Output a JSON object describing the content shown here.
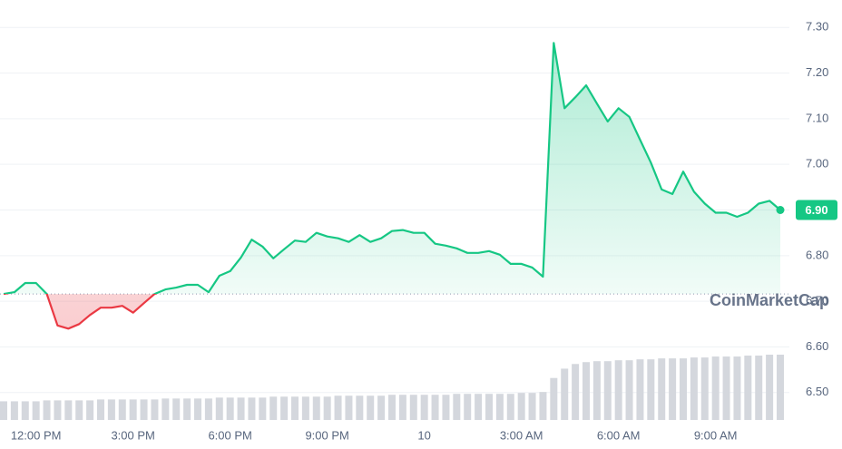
{
  "chart_data": {
    "type": "line",
    "categories": [
      null,
      null,
      null,
      "12:00 PM",
      null,
      null,
      null,
      null,
      null,
      null,
      null,
      null,
      "3:00 PM",
      null,
      null,
      null,
      null,
      null,
      null,
      null,
      null,
      "6:00 PM",
      null,
      null,
      null,
      null,
      null,
      null,
      null,
      null,
      "9:00 PM",
      null,
      null,
      null,
      null,
      null,
      null,
      null,
      null,
      "10",
      null,
      null,
      null,
      null,
      null,
      null,
      null,
      null,
      "3:00 AM",
      null,
      null,
      null,
      null,
      null,
      null,
      null,
      null,
      "6:00 AM",
      null,
      null,
      null,
      null,
      null,
      null,
      null,
      null,
      "9:00 AM",
      null,
      null,
      null,
      null,
      null,
      null
    ],
    "series": [
      {
        "name": "Price",
        "color": "#16c784",
        "below_color": "#ea3943",
        "values": [
          6.716,
          6.72,
          6.74,
          6.74,
          6.716,
          6.647,
          6.64,
          6.65,
          6.67,
          6.686,
          6.686,
          6.69,
          6.675,
          6.696,
          6.716,
          6.726,
          6.73,
          6.736,
          6.736,
          6.72,
          6.756,
          6.766,
          6.796,
          6.835,
          6.82,
          6.794,
          6.814,
          6.833,
          6.83,
          6.85,
          6.842,
          6.838,
          6.83,
          6.845,
          6.83,
          6.838,
          6.854,
          6.856,
          6.85,
          6.85,
          6.826,
          6.822,
          6.816,
          6.806,
          6.806,
          6.81,
          6.802,
          6.782,
          6.782,
          6.774,
          6.754,
          7.266,
          7.123,
          7.147,
          7.173,
          7.133,
          7.094,
          7.123,
          7.104,
          7.054,
          7.004,
          6.945,
          6.935,
          6.984,
          6.94,
          6.914,
          6.894,
          6.894,
          6.885,
          6.894,
          6.914,
          6.92,
          6.9
        ]
      }
    ],
    "volume": {
      "color": "#d4d7dd",
      "values": [
        20,
        20,
        20,
        20,
        21,
        21,
        21,
        21,
        21,
        22,
        22,
        22,
        22,
        22,
        22,
        23,
        23,
        23,
        23,
        23,
        24,
        24,
        24,
        24,
        24,
        25,
        25,
        25,
        25,
        25,
        25,
        26,
        26,
        26,
        26,
        26,
        27,
        27,
        27,
        27,
        27,
        27,
        28,
        28,
        28,
        28,
        28,
        28,
        29,
        29,
        30,
        45,
        55,
        60,
        62,
        63,
        63,
        64,
        64,
        65,
        65,
        66,
        66,
        66,
        67,
        67,
        68,
        68,
        68,
        69,
        69,
        70,
        70
      ]
    },
    "baseline": 6.716,
    "ylim": [
      6.44,
      7.36
    ],
    "yticks": [
      {
        "value": 6.5,
        "label": "6.50"
      },
      {
        "value": 6.6,
        "label": "6.60"
      },
      {
        "value": 6.7,
        "label": "6.70"
      },
      {
        "value": 6.8,
        "label": "6.80"
      },
      {
        "value": 6.9,
        "label": "6.90"
      },
      {
        "value": 7.0,
        "label": "7.00"
      },
      {
        "value": 7.1,
        "label": "7.10"
      },
      {
        "value": 7.2,
        "label": "7.20"
      },
      {
        "value": 7.3,
        "label": "7.30"
      }
    ],
    "grid": true,
    "price_label": "6.90",
    "watermark": "CoinMarketCap"
  }
}
